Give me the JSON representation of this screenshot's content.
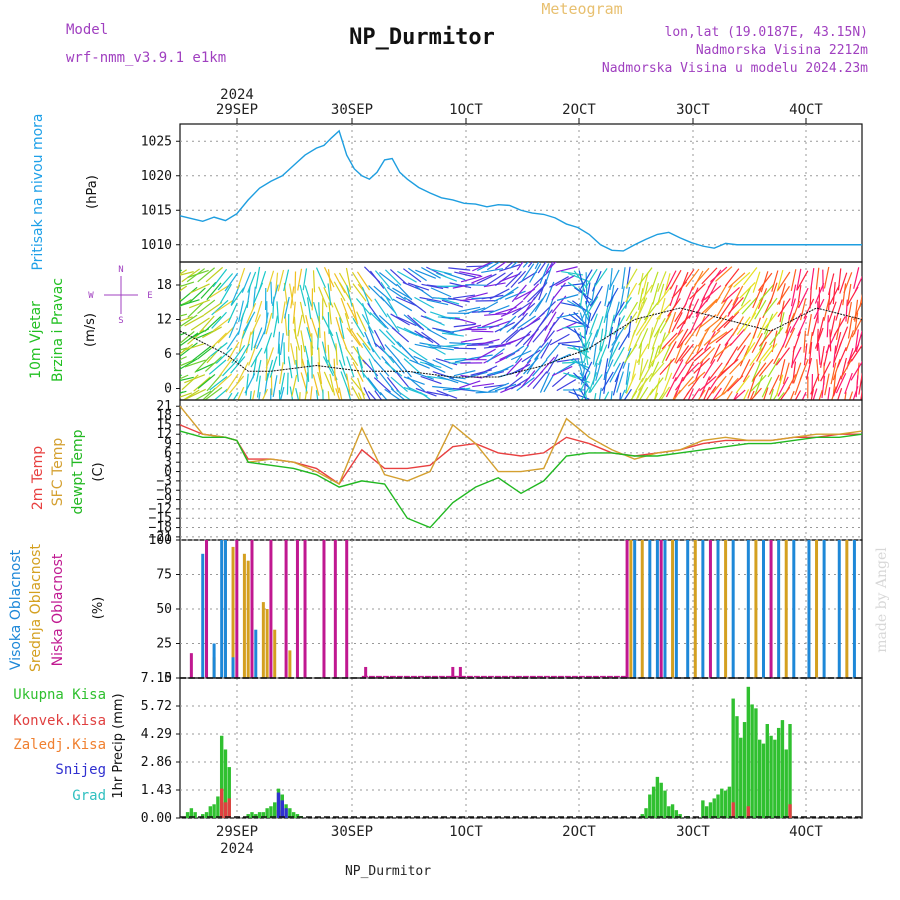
{
  "header": {
    "model_label": "Model",
    "model_value": "wrf-nmm_v3.9.1 e1km",
    "title": "NP_Durmitor",
    "meteogram_label": "Meteogram",
    "coords": "lon,lat (19.0187E, 43.15N)",
    "elevation": "Nadmorska Visina 2212m",
    "model_elevation": "Nadmorska Visina u modelu 2024.23m"
  },
  "footer": {
    "station": "NP_Durmitor",
    "credit": "made by Angel"
  },
  "colors": {
    "pressure": "#1e9ee0",
    "t2m": "#e84040",
    "sfc": "#d4a030",
    "dew": "#22b822",
    "high_cloud": "#1e88d8",
    "mid_cloud": "#d4a020",
    "low_cloud": "#c01890",
    "total_precip": "#30c030",
    "conv_precip": "#e04040",
    "frz_precip": "#f08030",
    "snow": "#3030d0",
    "hail": "#30c0c0",
    "legend_purple": "#a040c0"
  },
  "chart_data": [
    {
      "type": "line",
      "id": "pressure",
      "ylabel_title": "Pritisak na nivou mora",
      "ylabel_unit": "(hPa)",
      "top_axis_year": "2024",
      "x_ticks": [
        "29SEP",
        "30SEP",
        "1OCT",
        "2OCT",
        "3OCT",
        "4OCT"
      ],
      "y_ticks": [
        1010,
        1015,
        1020,
        1025
      ],
      "ylim": [
        1007.5,
        1027.5
      ],
      "x_hours": [
        0,
        3,
        6,
        9,
        12,
        15,
        18,
        21,
        24,
        27,
        30,
        33,
        36,
        38,
        40,
        42,
        44,
        46,
        48,
        50,
        52,
        54,
        56,
        58,
        60,
        63,
        66,
        69,
        72,
        75,
        78,
        81,
        84,
        87,
        90,
        93,
        96,
        99,
        102,
        105,
        108,
        111,
        114,
        117,
        120,
        123,
        126,
        129,
        132,
        135,
        138,
        141,
        144,
        147,
        150,
        153,
        156,
        159,
        162,
        165,
        168,
        171,
        174,
        177,
        180
      ],
      "values": [
        1014.2,
        1013.8,
        1013.4,
        1014.0,
        1013.5,
        1014.5,
        1016.5,
        1018.2,
        1019.2,
        1020.0,
        1021.5,
        1023.0,
        1024.0,
        1024.4,
        1025.5,
        1026.5,
        1023.0,
        1021.0,
        1020.0,
        1019.5,
        1020.5,
        1022.3,
        1022.5,
        1020.5,
        1019.5,
        1018.3,
        1017.5,
        1016.8,
        1016.5,
        1016.0,
        1015.9,
        1015.5,
        1015.8,
        1015.7,
        1015.0,
        1014.6,
        1014.4,
        1013.9,
        1013.0,
        1012.5,
        1011.5,
        1010.0,
        1009.2,
        1009.1,
        1010.0,
        1010.8,
        1011.5,
        1011.8,
        1011.0,
        1010.3,
        1009.8,
        1009.5,
        1010.2,
        1010.0,
        1010.0,
        1010.0,
        1010.0,
        1010.0,
        1010.0,
        1010.0,
        1010.0,
        1010.0,
        1010.0,
        1010.0,
        1010.0
      ]
    },
    {
      "type": "barbs",
      "id": "wind",
      "ylabel_title": "10m Vjetar",
      "ylabel_title2": "Brzina i Pravac",
      "ylabel_unit": "(m/s)",
      "compass": {
        "north": "N",
        "south": "S",
        "east": "E",
        "west": "W"
      },
      "y_ticks": [
        0,
        6,
        12,
        18
      ],
      "ylim": [
        -2,
        22
      ],
      "x_hours": [
        0,
        12,
        18,
        24,
        36,
        48,
        60,
        72,
        84,
        96,
        108,
        120,
        132,
        144,
        156,
        168,
        180
      ],
      "speed": [
        10,
        6,
        3,
        3,
        4,
        3,
        3,
        2,
        2,
        4,
        7,
        12,
        14,
        12,
        10,
        14,
        12
      ],
      "direction_deg": [
        250,
        230,
        200,
        190,
        170,
        150,
        120,
        90,
        60,
        30,
        200,
        200,
        210,
        220,
        210,
        190,
        200
      ]
    },
    {
      "type": "line",
      "id": "temperature",
      "ylabel_1": "2m Temp",
      "ylabel_2": "SFC Temp",
      "ylabel_3": "dewpt Temp",
      "ylabel_unit": "(C)",
      "y_ticks": [
        -21,
        -18,
        -15,
        -12,
        -9,
        -6,
        -3,
        0,
        3,
        6,
        9,
        12,
        15,
        18,
        21
      ],
      "ylim": [
        -22,
        23
      ],
      "series": [
        {
          "key": "t2m",
          "x_hours": [
            0,
            6,
            12,
            15,
            18,
            24,
            30,
            36,
            42,
            48,
            54,
            60,
            66,
            72,
            78,
            84,
            90,
            96,
            102,
            108,
            114,
            120,
            126,
            132,
            138,
            144,
            150,
            156,
            162,
            168,
            174,
            180
          ],
          "values": [
            15,
            12,
            11,
            10,
            4,
            4,
            3,
            1,
            -4,
            7,
            1,
            1,
            2,
            8,
            9,
            6,
            5,
            6,
            11,
            9,
            6,
            5,
            6,
            7,
            9,
            10,
            10,
            10,
            11,
            11,
            12,
            12
          ]
        },
        {
          "key": "sfc",
          "x_hours": [
            0,
            6,
            12,
            15,
            18,
            24,
            30,
            36,
            42,
            48,
            54,
            60,
            66,
            72,
            78,
            84,
            90,
            96,
            102,
            108,
            114,
            120,
            126,
            132,
            138,
            144,
            150,
            156,
            162,
            168,
            174,
            180
          ],
          "values": [
            21,
            12,
            11,
            10,
            3,
            4,
            3,
            0,
            -4,
            14,
            -1,
            -3,
            0,
            15,
            9,
            0,
            0,
            1,
            17,
            11,
            7,
            4,
            6,
            7,
            10,
            11,
            10,
            10,
            11,
            12,
            12,
            13
          ]
        },
        {
          "key": "dew",
          "x_hours": [
            0,
            6,
            12,
            15,
            18,
            24,
            30,
            36,
            42,
            48,
            54,
            60,
            66,
            72,
            78,
            84,
            90,
            96,
            102,
            108,
            114,
            120,
            126,
            132,
            138,
            144,
            150,
            156,
            162,
            168,
            174,
            180
          ],
          "values": [
            13,
            11,
            11,
            10,
            3,
            2,
            1,
            -1,
            -5,
            -3,
            -4,
            -15,
            -18,
            -10,
            -5,
            -2,
            -7,
            -3,
            5,
            6,
            6,
            5,
            5,
            6,
            7,
            8,
            9,
            9,
            10,
            11,
            11,
            12
          ]
        }
      ]
    },
    {
      "type": "bar",
      "id": "clouds",
      "ylabel_1": "Visoka Oblacnost",
      "ylabel_2": "Srednja Oblacnost",
      "ylabel_3": "Niska Oblacnost",
      "ylabel_unit": "(%)",
      "y_ticks": [
        0,
        25,
        50,
        75,
        100
      ],
      "ylim": [
        0,
        100
      ],
      "high_bars": [
        [
          6,
          90
        ],
        [
          7,
          100
        ],
        [
          9,
          25
        ],
        [
          11,
          100
        ],
        [
          12,
          100
        ],
        [
          14,
          15
        ],
        [
          16,
          0
        ],
        [
          20,
          35
        ],
        [
          120,
          100
        ],
        [
          124,
          100
        ],
        [
          126,
          100
        ],
        [
          128,
          100
        ],
        [
          131,
          100
        ],
        [
          134,
          100
        ],
        [
          138,
          100
        ],
        [
          142,
          100
        ],
        [
          146,
          100
        ],
        [
          150,
          100
        ],
        [
          154,
          100
        ],
        [
          158,
          100
        ],
        [
          162,
          100
        ],
        [
          166,
          100
        ],
        [
          170,
          100
        ],
        [
          174,
          100
        ],
        [
          178,
          100
        ]
      ],
      "mid_bars": [
        [
          9,
          15
        ],
        [
          12,
          100
        ],
        [
          14,
          95
        ],
        [
          17,
          90
        ],
        [
          18,
          85
        ],
        [
          22,
          55
        ],
        [
          23,
          50
        ],
        [
          25,
          35
        ],
        [
          29,
          20
        ],
        [
          119,
          100
        ],
        [
          122,
          100
        ],
        [
          130,
          100
        ],
        [
          136,
          100
        ],
        [
          144,
          100
        ],
        [
          152,
          100
        ],
        [
          160,
          100
        ],
        [
          168,
          100
        ],
        [
          176,
          100
        ]
      ],
      "low_bars": [
        [
          3,
          18
        ],
        [
          7,
          100
        ],
        [
          15,
          100
        ],
        [
          19,
          100
        ],
        [
          24,
          100
        ],
        [
          28,
          100
        ],
        [
          31,
          100
        ],
        [
          33,
          100
        ],
        [
          38,
          100
        ],
        [
          41,
          100
        ],
        [
          44,
          100
        ],
        [
          49,
          8
        ],
        [
          72,
          8
        ],
        [
          74,
          8
        ],
        [
          118,
          100
        ],
        [
          127,
          100
        ],
        [
          140,
          100
        ],
        [
          156,
          100
        ]
      ]
    },
    {
      "type": "bar",
      "id": "precip",
      "ylabel_unit": "1hr Precip (mm)",
      "legend": [
        "Ukupna Kisa",
        "Konvek.Kisa",
        "Zaledj.Kisa",
        "Snijeg",
        "Grad"
      ],
      "bottom_axis_year": "2024",
      "y_ticks": [
        0,
        1.43,
        2.86,
        4.29,
        5.72,
        7.15
      ],
      "ylim": [
        0,
        7.15
      ],
      "total": [
        [
          2,
          0.3
        ],
        [
          3,
          0.5
        ],
        [
          4,
          0.3
        ],
        [
          6,
          0.2
        ],
        [
          7,
          0.3
        ],
        [
          8,
          0.6
        ],
        [
          9,
          0.7
        ],
        [
          10,
          1.1
        ],
        [
          11,
          4.2
        ],
        [
          12,
          3.5
        ],
        [
          13,
          2.6
        ],
        [
          18,
          0.2
        ],
        [
          19,
          0.3
        ],
        [
          20,
          0.2
        ],
        [
          21,
          0.3
        ],
        [
          22,
          0.3
        ],
        [
          23,
          0.5
        ],
        [
          24,
          0.6
        ],
        [
          25,
          0.8
        ],
        [
          26,
          1.5
        ],
        [
          27,
          1.2
        ],
        [
          28,
          0.7
        ],
        [
          29,
          0.5
        ],
        [
          30,
          0.3
        ],
        [
          31,
          0.2
        ],
        [
          32,
          0.1
        ],
        [
          122,
          0.2
        ],
        [
          123,
          0.5
        ],
        [
          124,
          1.2
        ],
        [
          125,
          1.6
        ],
        [
          126,
          2.1
        ],
        [
          127,
          1.8
        ],
        [
          128,
          1.4
        ],
        [
          129,
          0.6
        ],
        [
          130,
          0.7
        ],
        [
          131,
          0.4
        ],
        [
          132,
          0.2
        ],
        [
          134,
          0.1
        ],
        [
          138,
          0.9
        ],
        [
          139,
          0.6
        ],
        [
          140,
          0.8
        ],
        [
          141,
          1.0
        ],
        [
          142,
          1.2
        ],
        [
          143,
          1.5
        ],
        [
          144,
          1.4
        ],
        [
          145,
          1.6
        ],
        [
          146,
          6.1
        ],
        [
          147,
          5.2
        ],
        [
          148,
          4.1
        ],
        [
          149,
          4.9
        ],
        [
          150,
          6.7
        ],
        [
          151,
          5.8
        ],
        [
          152,
          5.6
        ],
        [
          153,
          4.0
        ],
        [
          154,
          3.8
        ],
        [
          155,
          4.8
        ],
        [
          156,
          4.2
        ],
        [
          157,
          4.0
        ],
        [
          158,
          4.6
        ],
        [
          159,
          5.0
        ],
        [
          160,
          3.5
        ],
        [
          161,
          4.8
        ]
      ],
      "conv": [
        [
          11,
          1.5
        ],
        [
          12,
          0.8
        ],
        [
          13,
          1.0
        ],
        [
          26,
          0.4
        ],
        [
          146,
          0.8
        ],
        [
          150,
          0.6
        ],
        [
          161,
          0.7
        ]
      ],
      "snow": [
        [
          26,
          1.3
        ],
        [
          27,
          0.9
        ],
        [
          28,
          0.5
        ]
      ]
    }
  ]
}
